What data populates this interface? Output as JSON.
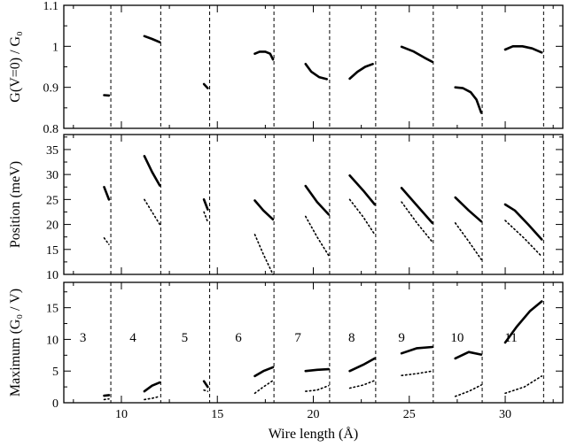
{
  "chart_data": [
    {
      "type": "line",
      "panel": "top",
      "ylabel": "G(V=0) / G₀",
      "xlim": [
        7,
        33
      ],
      "ylim": [
        0.8,
        1.1
      ],
      "yticks": [
        "0.8",
        "0.9",
        "1",
        "1.1"
      ],
      "grid": false,
      "segments": [
        {
          "x": [
            9.1,
            9.35
          ],
          "y": [
            0.881,
            0.88
          ]
        },
        {
          "x": [
            11.2,
            11.6,
            12.0
          ],
          "y": [
            1.025,
            1.018,
            1.01
          ]
        },
        {
          "x": [
            14.3,
            14.5
          ],
          "y": [
            0.908,
            0.898
          ]
        },
        {
          "x": [
            16.95,
            17.2,
            17.5,
            17.75,
            17.9
          ],
          "y": [
            0.982,
            0.987,
            0.987,
            0.982,
            0.968
          ]
        },
        {
          "x": [
            19.6,
            19.9,
            20.3,
            20.7
          ],
          "y": [
            0.957,
            0.938,
            0.925,
            0.92
          ]
        },
        {
          "x": [
            21.9,
            22.3,
            22.7,
            23.1
          ],
          "y": [
            0.921,
            0.938,
            0.95,
            0.957
          ]
        },
        {
          "x": [
            24.6,
            25.2,
            25.8,
            26.2
          ],
          "y": [
            0.999,
            0.988,
            0.972,
            0.962
          ]
        },
        {
          "x": [
            27.4,
            27.8,
            28.2,
            28.5,
            28.75
          ],
          "y": [
            0.9,
            0.898,
            0.888,
            0.87,
            0.838
          ]
        },
        {
          "x": [
            30.0,
            30.4,
            30.9,
            31.4,
            31.9
          ],
          "y": [
            0.992,
            1.0,
            1.0,
            0.995,
            0.985
          ]
        }
      ],
      "dashed_lines_x": [
        9.45,
        12.05,
        14.6,
        17.95,
        20.85,
        23.25,
        26.25,
        28.8,
        32.0
      ]
    },
    {
      "type": "line",
      "panel": "middle",
      "ylabel": "Position (meV)",
      "xlim": [
        7,
        33
      ],
      "ylim": [
        10,
        38
      ],
      "yticks": [
        "10",
        "15",
        "20",
        "25",
        "30",
        "35"
      ],
      "grid": false,
      "series": [
        {
          "style": "solid",
          "segments": [
            {
              "x": [
                9.1,
                9.35
              ],
              "y": [
                27.5,
                25.0
              ]
            },
            {
              "x": [
                11.2,
                11.6,
                12.0
              ],
              "y": [
                33.7,
                30.5,
                27.8
              ]
            },
            {
              "x": [
                14.3,
                14.5
              ],
              "y": [
                25.0,
                23.0
              ]
            },
            {
              "x": [
                16.95,
                17.4,
                17.9
              ],
              "y": [
                24.8,
                22.8,
                21.0
              ]
            },
            {
              "x": [
                19.6,
                20.2,
                20.8
              ],
              "y": [
                27.7,
                24.5,
                22.0
              ]
            },
            {
              "x": [
                21.9,
                22.6,
                23.2
              ],
              "y": [
                29.8,
                26.8,
                24.0
              ]
            },
            {
              "x": [
                24.6,
                25.4,
                26.2
              ],
              "y": [
                27.3,
                23.8,
                20.3
              ]
            },
            {
              "x": [
                27.4,
                28.1,
                28.75
              ],
              "y": [
                25.4,
                22.8,
                20.6
              ]
            },
            {
              "x": [
                30.0,
                30.5,
                31.2,
                31.9
              ],
              "y": [
                24.0,
                22.8,
                20.0,
                17.0
              ]
            }
          ]
        },
        {
          "style": "dotted",
          "segments": [
            {
              "x": [
                9.1,
                9.35
              ],
              "y": [
                17.3,
                16.0
              ]
            },
            {
              "x": [
                11.2,
                11.6,
                12.0
              ],
              "y": [
                25.0,
                22.5,
                20.0
              ]
            },
            {
              "x": [
                14.3,
                14.5
              ],
              "y": [
                22.5,
                20.5
              ]
            },
            {
              "x": [
                16.95,
                17.4,
                17.9
              ],
              "y": [
                18.0,
                14.0,
                10.0
              ]
            },
            {
              "x": [
                19.6,
                20.2,
                20.8
              ],
              "y": [
                21.6,
                17.5,
                13.8
              ]
            },
            {
              "x": [
                21.9,
                22.6,
                23.2
              ],
              "y": [
                25.0,
                21.5,
                18.0
              ]
            },
            {
              "x": [
                24.6,
                25.4,
                26.2
              ],
              "y": [
                24.5,
                20.3,
                16.5
              ]
            },
            {
              "x": [
                27.4,
                28.1,
                28.75
              ],
              "y": [
                20.3,
                16.6,
                13.0
              ]
            },
            {
              "x": [
                30.0,
                31.0,
                31.9
              ],
              "y": [
                20.8,
                17.2,
                13.6
              ]
            }
          ]
        }
      ],
      "dashed_lines_x": [
        9.45,
        12.05,
        14.6,
        17.95,
        20.85,
        23.25,
        26.25,
        28.8,
        32.0
      ]
    },
    {
      "type": "line",
      "panel": "bottom",
      "ylabel": "Maximum (G₀ / V)",
      "xlabel": "Wire length (Å)",
      "xlim": [
        7,
        33
      ],
      "ylim": [
        0,
        19
      ],
      "yticks": [
        "0",
        "5",
        "10",
        "15"
      ],
      "xticks": [
        "10",
        "15",
        "20",
        "25",
        "30"
      ],
      "xtick_values": [
        10,
        15,
        20,
        25,
        30
      ],
      "grid": false,
      "segment_labels": [
        "3",
        "4",
        "5",
        "6",
        "7",
        "8",
        "9",
        "10",
        "11"
      ],
      "segment_label_x": [
        8.0,
        10.6,
        13.3,
        16.1,
        19.2,
        22.0,
        24.6,
        27.5,
        30.3
      ],
      "series": [
        {
          "style": "solid",
          "segments": [
            {
              "x": [
                9.1,
                9.35
              ],
              "y": [
                1.1,
                1.2
              ]
            },
            {
              "x": [
                11.2,
                11.6,
                12.0
              ],
              "y": [
                1.8,
                2.7,
                3.2
              ]
            },
            {
              "x": [
                14.3,
                14.5
              ],
              "y": [
                3.4,
                2.5
              ]
            },
            {
              "x": [
                16.95,
                17.4,
                17.9
              ],
              "y": [
                4.2,
                5.0,
                5.6
              ]
            },
            {
              "x": [
                19.6,
                20.2,
                20.8
              ],
              "y": [
                5.0,
                5.2,
                5.3
              ]
            },
            {
              "x": [
                21.9,
                22.6,
                23.2
              ],
              "y": [
                5.0,
                6.0,
                7.0
              ]
            },
            {
              "x": [
                24.6,
                25.4,
                26.2
              ],
              "y": [
                7.8,
                8.6,
                8.8
              ]
            },
            {
              "x": [
                27.4,
                28.1,
                28.75
              ],
              "y": [
                7.0,
                8.0,
                7.6
              ]
            },
            {
              "x": [
                30.0,
                30.6,
                31.3,
                31.9
              ],
              "y": [
                9.5,
                12.0,
                14.5,
                16.0
              ]
            }
          ]
        },
        {
          "style": "dotted",
          "segments": [
            {
              "x": [
                9.1,
                9.35
              ],
              "y": [
                0.5,
                0.6
              ]
            },
            {
              "x": [
                11.2,
                11.6,
                12.0
              ],
              "y": [
                0.5,
                0.7,
                1.0
              ]
            },
            {
              "x": [
                14.3,
                14.5
              ],
              "y": [
                2.0,
                1.8
              ]
            },
            {
              "x": [
                16.95,
                17.4,
                17.9
              ],
              "y": [
                1.5,
                2.5,
                3.5
              ]
            },
            {
              "x": [
                19.6,
                20.2,
                20.8
              ],
              "y": [
                1.8,
                2.0,
                2.7
              ]
            },
            {
              "x": [
                21.9,
                22.6,
                23.2
              ],
              "y": [
                2.3,
                2.8,
                3.5
              ]
            },
            {
              "x": [
                24.6,
                25.4,
                26.2
              ],
              "y": [
                4.3,
                4.6,
                5.0
              ]
            },
            {
              "x": [
                27.4,
                28.1,
                28.75
              ],
              "y": [
                1.0,
                1.8,
                2.8
              ]
            },
            {
              "x": [
                30.0,
                31.0,
                31.9
              ],
              "y": [
                1.5,
                2.5,
                4.2
              ]
            }
          ]
        }
      ],
      "dashed_lines_x": [
        9.45,
        12.05,
        14.6,
        17.95,
        20.85,
        23.25,
        26.25,
        28.8,
        32.0
      ]
    }
  ]
}
